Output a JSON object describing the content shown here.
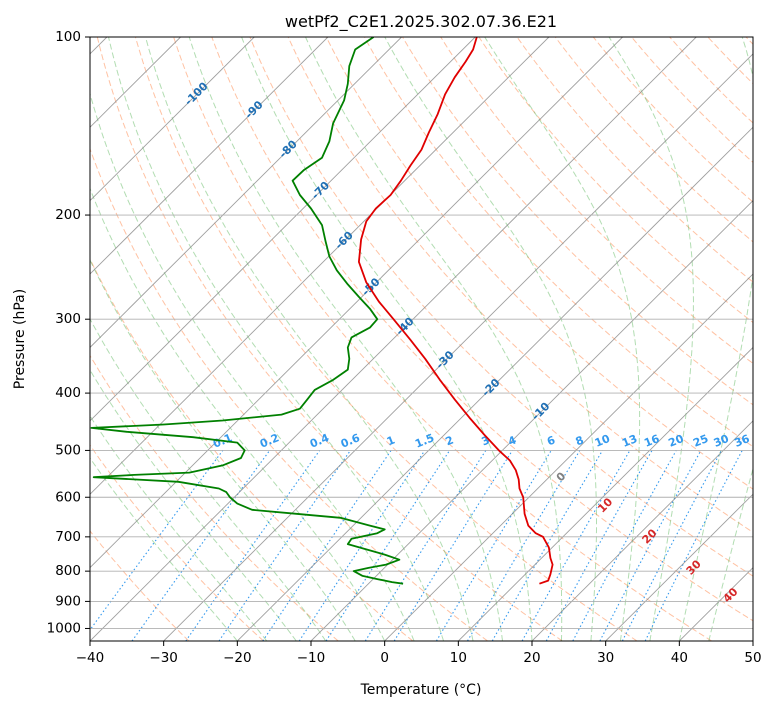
{
  "chart_data": {
    "type": "line",
    "title": "wetPf2_C2E1.2025.302.07.36.E21",
    "xlabel": "Temperature (°C)",
    "ylabel": "Pressure (hPa)",
    "xlim": [
      -40,
      50
    ],
    "ylim": [
      1050,
      100
    ],
    "yscale": "log",
    "grid": true,
    "x_ticks": [
      "−40",
      "−30",
      "−20",
      "−10",
      "0",
      "10",
      "20",
      "30",
      "40",
      "50"
    ],
    "y_ticks": [
      "100",
      "200",
      "300",
      "400",
      "500",
      "600",
      "700",
      "800",
      "900",
      "1000"
    ],
    "series": [
      {
        "color": "#e00000",
        "points": [
          [
            21,
            840
          ],
          [
            22.2,
            830
          ],
          [
            22.5,
            810
          ],
          [
            22.8,
            780
          ],
          [
            22.5,
            760
          ],
          [
            22.3,
            730
          ],
          [
            21.5,
            700
          ],
          [
            20.5,
            690
          ],
          [
            19.5,
            670
          ],
          [
            19,
            640
          ],
          [
            18.8,
            600
          ],
          [
            18.3,
            580
          ],
          [
            18.2,
            560
          ],
          [
            17.8,
            540
          ],
          [
            17,
            520
          ],
          [
            15.5,
            500
          ],
          [
            13.5,
            470
          ],
          [
            11.5,
            440
          ],
          [
            9.5,
            410
          ],
          [
            7.5,
            380
          ],
          [
            5.5,
            350
          ],
          [
            3.5,
            325
          ],
          [
            1.2,
            300
          ],
          [
            -0.8,
            280
          ],
          [
            -2.5,
            260
          ],
          [
            -3.5,
            240
          ],
          [
            -3.2,
            220
          ],
          [
            -2.5,
            205
          ],
          [
            -1.2,
            195
          ],
          [
            0.8,
            185
          ],
          [
            2.2,
            175
          ],
          [
            3.5,
            165
          ],
          [
            5,
            155
          ],
          [
            6,
            145
          ],
          [
            7.2,
            135
          ],
          [
            8.2,
            125
          ],
          [
            9.5,
            117
          ],
          [
            11,
            110
          ],
          [
            12,
            105
          ],
          [
            12.5,
            100
          ]
        ]
      },
      {
        "color": "#008000",
        "points": [
          [
            2.5,
            840
          ],
          [
            1,
            835
          ],
          [
            -1,
            825
          ],
          [
            -3,
            815
          ],
          [
            -4.2,
            800
          ],
          [
            -2.2,
            790
          ],
          [
            0.2,
            780
          ],
          [
            2,
            765
          ],
          [
            0,
            750
          ],
          [
            -2.5,
            735
          ],
          [
            -5,
            720
          ],
          [
            -4.5,
            705
          ],
          [
            -1,
            690
          ],
          [
            0,
            680
          ],
          [
            -2,
            670
          ],
          [
            -6,
            650
          ],
          [
            -12,
            640
          ],
          [
            -18,
            630
          ],
          [
            -20,
            615
          ],
          [
            -21,
            600
          ],
          [
            -21.5,
            588
          ],
          [
            -22.5,
            580
          ],
          [
            -28,
            565
          ],
          [
            -39.5,
            555
          ],
          [
            -34,
            550
          ],
          [
            -26.5,
            545
          ],
          [
            -22,
            530
          ],
          [
            -19.5,
            515
          ],
          [
            -19,
            500
          ],
          [
            -20,
            485
          ],
          [
            -26,
            475
          ],
          [
            -35,
            465
          ],
          [
            -39.8,
            458
          ],
          [
            -30,
            452
          ],
          [
            -22,
            445
          ],
          [
            -14,
            435
          ],
          [
            -11.5,
            425
          ],
          [
            -10.5,
            410
          ],
          [
            -9.5,
            395
          ],
          [
            -7,
            380
          ],
          [
            -5,
            365
          ],
          [
            -4.8,
            350
          ],
          [
            -5,
            335
          ],
          [
            -4.5,
            322
          ],
          [
            -2,
            310
          ],
          [
            -1,
            300
          ],
          [
            -2,
            288
          ],
          [
            -3.5,
            275
          ],
          [
            -5,
            262
          ],
          [
            -6.5,
            248
          ],
          [
            -7.5,
            235
          ],
          [
            -8,
            222
          ],
          [
            -8.5,
            208
          ],
          [
            -10,
            195
          ],
          [
            -11.5,
            185
          ],
          [
            -12.5,
            175
          ],
          [
            -11,
            168
          ],
          [
            -8.5,
            160
          ],
          [
            -7.5,
            150
          ],
          [
            -7,
            140
          ],
          [
            -5.5,
            128
          ],
          [
            -5,
            120
          ],
          [
            -4.8,
            112
          ],
          [
            -4,
            105
          ],
          [
            -1.5,
            100
          ]
        ]
      }
    ],
    "isotherm_labels": [
      "-100",
      "-90",
      "-80",
      "-70",
      "-60",
      "-50",
      "-40",
      "-30",
      "-20",
      "-10"
    ],
    "mixing_ratio_labels": [
      "0.1",
      "0.2",
      "0.4",
      "0.6",
      "1",
      "1.5",
      "2",
      "3",
      "4",
      "6",
      "8",
      "10",
      "13",
      "16",
      "20",
      "25",
      "30",
      "36"
    ],
    "moist_adiabat_labels": [
      "0",
      "10",
      "20",
      "30",
      "40"
    ],
    "colors": {
      "temperature": "#e00000",
      "dewpoint": "#008000",
      "isobar_grid": "#b0b0b0",
      "isotherm_skew": "#888888",
      "dry_adiabat": "#ff9966",
      "moist_adiabat": "#66bb66",
      "mixing_ratio": "#3399ee",
      "isotherm_label": "#1f6fb4",
      "moist_label": "#d62728"
    }
  }
}
